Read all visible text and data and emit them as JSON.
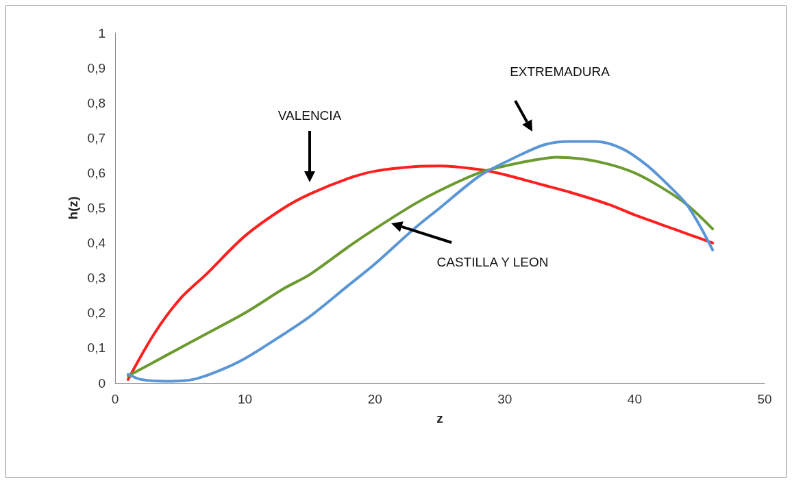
{
  "chart_data": {
    "type": "line",
    "xlabel": "z",
    "ylabel": "h(z)",
    "xlim": [
      0,
      50
    ],
    "xticks": [
      0,
      10,
      20,
      30,
      40,
      50
    ],
    "ylim": [
      0,
      1
    ],
    "yticks": [
      {
        "value": 0,
        "label": "0"
      },
      {
        "value": 0.1,
        "label": "0,1"
      },
      {
        "value": 0.2,
        "label": "0,2"
      },
      {
        "value": 0.3,
        "label": "0,3"
      },
      {
        "value": 0.4,
        "label": "0,4"
      },
      {
        "value": 0.5,
        "label": "0,5"
      },
      {
        "value": 0.6,
        "label": "0,6"
      },
      {
        "value": 0.7,
        "label": "0,7"
      },
      {
        "value": 0.8,
        "label": "0,8"
      },
      {
        "value": 0.9,
        "label": "0,9"
      },
      {
        "value": 1,
        "label": "1"
      }
    ],
    "grid": false,
    "marker": "none",
    "line_style": "solid",
    "series": [
      {
        "color": "#ff1f1f",
        "x": [
          1,
          3,
          5,
          7,
          10,
          13,
          15,
          18,
          20,
          23,
          25,
          28,
          30,
          33,
          35,
          38,
          40,
          43,
          46
        ],
        "values": [
          0.01,
          0.14,
          0.24,
          0.31,
          0.42,
          0.5,
          0.54,
          0.585,
          0.605,
          0.618,
          0.62,
          0.61,
          0.595,
          0.565,
          0.545,
          0.51,
          0.48,
          0.44,
          0.4
        ]
      },
      {
        "color": "#6b9a2f",
        "x": [
          1,
          4,
          7,
          10,
          13,
          15,
          18,
          20,
          23,
          25,
          28,
          30,
          32,
          34,
          36,
          38,
          40,
          42,
          44,
          46
        ],
        "values": [
          0.02,
          0.08,
          0.14,
          0.2,
          0.27,
          0.31,
          0.39,
          0.44,
          0.51,
          0.55,
          0.6,
          0.62,
          0.635,
          0.645,
          0.64,
          0.625,
          0.6,
          0.56,
          0.51,
          0.44
        ]
      },
      {
        "color": "#5a96d6",
        "x": [
          1,
          2,
          4,
          6,
          8,
          10,
          13,
          15,
          18,
          20,
          23,
          25,
          28,
          30,
          33,
          35,
          37,
          39,
          41,
          43,
          44,
          45,
          46
        ],
        "values": [
          0.025,
          0.01,
          0.005,
          0.01,
          0.035,
          0.07,
          0.14,
          0.19,
          0.28,
          0.34,
          0.44,
          0.5,
          0.59,
          0.63,
          0.68,
          0.69,
          0.69,
          0.67,
          0.62,
          0.55,
          0.51,
          0.45,
          0.38
        ]
      }
    ],
    "annotations": [
      "VALENCIA",
      "EXTREMADURA",
      "CASTILLA Y LEON"
    ]
  }
}
